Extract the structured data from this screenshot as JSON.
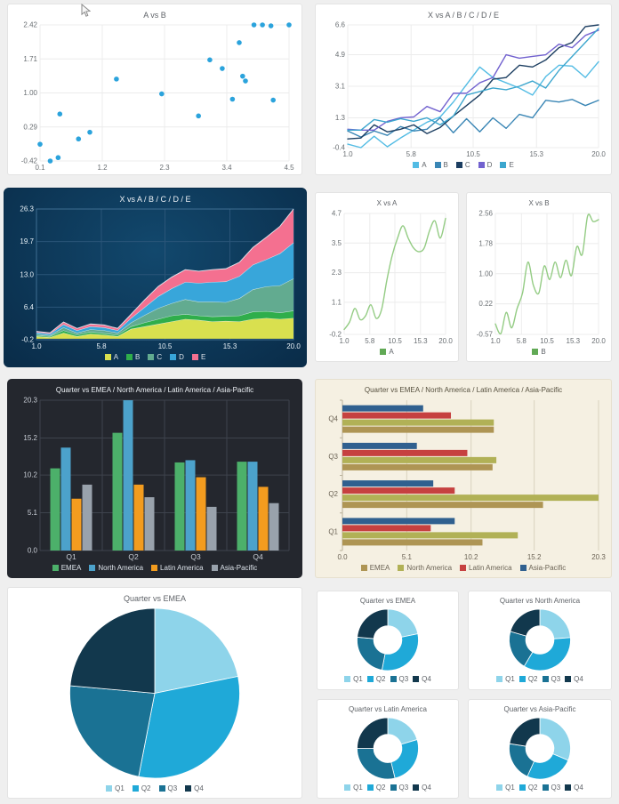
{
  "page": {
    "background": "#efefef"
  },
  "cursor": {
    "icon": "mouse-pointer"
  },
  "chart_data": [
    {
      "key": "scatter-a-vs-b",
      "type": "scatter",
      "title": "A vs B",
      "xticks": [
        "0.1",
        "1.2",
        "2.3",
        "3.4",
        "4.5"
      ],
      "yticks": [
        "-0.42",
        "0.29",
        "1.00",
        "1.71",
        "2.42"
      ],
      "point_color": "#2BA3DC",
      "grid": "#ececec",
      "text_color": "#6a6f73",
      "points": [
        [
          0.1,
          -0.07
        ],
        [
          0.28,
          -0.42
        ],
        [
          0.42,
          -0.35
        ],
        [
          0.45,
          0.56
        ],
        [
          0.78,
          0.04
        ],
        [
          0.98,
          0.18
        ],
        [
          1.45,
          1.29
        ],
        [
          2.25,
          0.98
        ],
        [
          2.9,
          0.52
        ],
        [
          3.1,
          1.69
        ],
        [
          3.32,
          1.51
        ],
        [
          3.5,
          0.87
        ],
        [
          3.62,
          2.05
        ],
        [
          3.68,
          1.35
        ],
        [
          3.73,
          1.25
        ],
        [
          3.88,
          2.42
        ],
        [
          4.03,
          2.42
        ],
        [
          4.18,
          2.4
        ],
        [
          4.22,
          0.85
        ],
        [
          4.5,
          2.42
        ]
      ]
    },
    {
      "key": "line-x-vs-abcde",
      "type": "line",
      "title": "X vs A / B / C / D / E",
      "xticks": [
        "1.0",
        "5.8",
        "10.5",
        "15.3",
        "20.0"
      ],
      "yticks": [
        "-0.4",
        "1.3",
        "3.1",
        "4.9",
        "6.6"
      ],
      "grid": "#ececec",
      "text_color": "#6a6f73",
      "series": [
        {
          "name": "A",
          "color": "#53BCE4",
          "values": [
            -0.2,
            -0.4,
            0.25,
            -0.35,
            0.15,
            0.6,
            1.05,
            1.35,
            2.2,
            3.2,
            4.2,
            3.6,
            3.3,
            3.0,
            2.6,
            3.65,
            4.3,
            4.25,
            3.6,
            4.5
          ]
        },
        {
          "name": "B",
          "color": "#3A86B5",
          "values": [
            0.55,
            0.2,
            0.55,
            0.3,
            0.8,
            0.55,
            0.65,
            1.3,
            0.45,
            1.25,
            0.5,
            1.3,
            0.7,
            1.5,
            1.3,
            2.3,
            2.2,
            2.35,
            2.0,
            2.3
          ]
        },
        {
          "name": "C",
          "color": "#1C3E61",
          "values": [
            0.1,
            0.15,
            0.9,
            0.5,
            0.65,
            0.9,
            0.4,
            0.75,
            1.4,
            2.0,
            2.6,
            3.5,
            3.6,
            4.3,
            4.2,
            4.6,
            5.3,
            5.6,
            6.5,
            6.6
          ]
        },
        {
          "name": "D",
          "color": "#7262CF",
          "values": [
            0.65,
            0.6,
            0.6,
            1.1,
            1.3,
            1.35,
            1.95,
            1.65,
            2.7,
            2.7,
            3.3,
            3.6,
            4.9,
            4.7,
            4.8,
            4.9,
            5.5,
            5.3,
            6.0,
            6.3
          ]
        },
        {
          "name": "E",
          "color": "#3CA6CE",
          "values": [
            0.6,
            0.6,
            1.2,
            1.05,
            1.25,
            1.1,
            1.3,
            0.9,
            1.4,
            2.6,
            2.8,
            3.0,
            2.9,
            3.1,
            3.4,
            3.0,
            4.0,
            4.8,
            5.6,
            6.4
          ]
        }
      ]
    },
    {
      "key": "area-x-vs-abcde",
      "type": "area",
      "title": "X vs A / B / C / D / E",
      "xticks": [
        "1.0",
        "5.8",
        "10.5",
        "15.3",
        "20.0"
      ],
      "yticks": [
        "-0.2",
        "6.4",
        "13.0",
        "19.7",
        "26.3"
      ],
      "grid": "#2a5578",
      "text_color": "#e8f1f7",
      "frame": "#3f6e92",
      "edge_stroke": "#e8f3f8",
      "series": [
        {
          "name": "A",
          "color": "#D9E04F",
          "values": [
            0.5,
            0.3,
            1.2,
            0.5,
            1.0,
            0.8,
            0.5,
            2.0,
            2.5,
            3.0,
            3.5,
            4.0,
            3.8,
            3.5,
            3.6,
            3.5,
            4.0,
            4.2,
            4.0,
            4.2
          ]
        },
        {
          "name": "B",
          "color": "#2FAE4B",
          "values": [
            0.2,
            0.2,
            0.5,
            0.3,
            0.4,
            0.3,
            0.3,
            0.5,
            0.8,
            1.0,
            1.2,
            1.0,
            0.9,
            1.0,
            1.0,
            1.2,
            1.5,
            1.4,
            1.3,
            1.5
          ]
        },
        {
          "name": "C",
          "color": "#62AB90",
          "values": [
            0.3,
            0.2,
            0.6,
            0.4,
            0.5,
            0.6,
            0.4,
            0.8,
            1.5,
            2.2,
            2.5,
            3.0,
            2.8,
            3.0,
            2.8,
            3.5,
            4.5,
            5.0,
            5.5,
            6.5
          ]
        },
        {
          "name": "D",
          "color": "#38A6DA",
          "values": [
            0.3,
            0.3,
            0.6,
            0.5,
            0.6,
            0.6,
            0.5,
            0.9,
            1.6,
            2.4,
            3.0,
            3.5,
            3.8,
            4.0,
            4.2,
            4.5,
            5.0,
            5.5,
            6.5,
            7.3
          ]
        },
        {
          "name": "E",
          "color": "#F47090",
          "values": [
            0.2,
            0.2,
            0.5,
            0.4,
            0.5,
            0.5,
            0.4,
            0.8,
            1.5,
            2.0,
            2.3,
            2.5,
            2.4,
            2.5,
            2.6,
            2.8,
            3.5,
            4.5,
            5.5,
            6.8
          ]
        }
      ]
    },
    {
      "key": "line-x-vs-a",
      "type": "line",
      "smooth": true,
      "compact": true,
      "title": "X vs A",
      "xticks": [
        "1.0",
        "5.8",
        "10.5",
        "15.3",
        "20.0"
      ],
      "yticks": [
        "-0.2",
        "1.1",
        "2.3",
        "3.5",
        "4.7"
      ],
      "grid": "#ececec",
      "text_color": "#6a6f73",
      "series": [
        {
          "name": "A",
          "color": "#94CC84",
          "swatch": "#61A955",
          "values": [
            0.0,
            0.3,
            0.85,
            0.4,
            0.55,
            1.0,
            0.45,
            0.8,
            2.0,
            3.0,
            3.7,
            4.2,
            3.7,
            3.3,
            3.15,
            3.3,
            4.0,
            4.4,
            3.7,
            4.5
          ]
        }
      ]
    },
    {
      "key": "line-x-vs-b",
      "type": "line",
      "smooth": true,
      "compact": true,
      "title": "X vs B",
      "xticks": [
        "1.0",
        "5.8",
        "10.5",
        "15.3",
        "20.0"
      ],
      "yticks": [
        "-0.57",
        "0.22",
        "1.00",
        "1.78",
        "2.56"
      ],
      "grid": "#ececec",
      "text_color": "#6a6f73",
      "series": [
        {
          "name": "B",
          "color": "#94CC84",
          "swatch": "#61A955",
          "values": [
            -0.3,
            -0.55,
            0.0,
            -0.4,
            0.1,
            0.5,
            1.3,
            0.7,
            0.5,
            1.2,
            0.85,
            1.3,
            0.9,
            1.35,
            0.95,
            1.7,
            1.5,
            2.5,
            2.35,
            2.4
          ]
        }
      ]
    },
    {
      "key": "bar-quarter-regions",
      "type": "bar",
      "title": "Quarter vs EMEA / North America / Latin America / Asia-Pacific",
      "categories": [
        "Q1",
        "Q2",
        "Q3",
        "Q4"
      ],
      "yticks": [
        "0.0",
        "5.1",
        "10.2",
        "15.2",
        "20.3"
      ],
      "grid": "#3e434d",
      "frame": "#484d58",
      "text_color": "#c9ced6",
      "series": [
        {
          "name": "EMEA",
          "color": "#4CB06A",
          "values": [
            11.1,
            15.9,
            11.9,
            12.0
          ]
        },
        {
          "name": "North America",
          "color": "#4CA2CB",
          "values": [
            13.9,
            20.3,
            12.2,
            12.0
          ]
        },
        {
          "name": "Latin America",
          "color": "#F39C1F",
          "values": [
            7.0,
            8.9,
            9.9,
            8.6
          ]
        },
        {
          "name": "Asia-Pacific",
          "color": "#99A2AC",
          "values": [
            8.9,
            7.2,
            5.9,
            6.4
          ]
        }
      ]
    },
    {
      "key": "hbar-quarter-regions",
      "type": "hbar",
      "title": "Quarter vs EMEA / North America / Latin America / Asia-Pacific",
      "categories": [
        "Q1",
        "Q2",
        "Q3",
        "Q4"
      ],
      "xticks": [
        "0.0",
        "5.1",
        "10.2",
        "15.2",
        "20.3"
      ],
      "grid": "#d9d2be",
      "frame": "#b9b19a",
      "text_color": "#6b6355",
      "series": [
        {
          "name": "EMEA",
          "color": "#AE9554",
          "values": [
            11.1,
            15.9,
            11.9,
            12.0
          ]
        },
        {
          "name": "North America",
          "color": "#B1B156",
          "values": [
            13.9,
            20.3,
            12.2,
            12.0
          ]
        },
        {
          "name": "Latin America",
          "color": "#C64140",
          "values": [
            7.0,
            8.9,
            9.9,
            8.6
          ]
        },
        {
          "name": "Asia-Pacific",
          "color": "#30608F",
          "values": [
            8.9,
            7.2,
            5.9,
            6.4
          ]
        }
      ]
    },
    {
      "key": "pie-quarter-emea",
      "type": "pie",
      "title": "Quarter vs EMEA",
      "labels": [
        "Q1",
        "Q2",
        "Q3",
        "Q4"
      ],
      "values": [
        11.1,
        15.9,
        11.9,
        12.0
      ],
      "colors": [
        "#8ED4EA",
        "#1FA9D8",
        "#1A7294",
        "#12384D"
      ],
      "text_color": "#6a6f73"
    },
    {
      "key": "donut-quarter-emea",
      "type": "donut",
      "title": "Quarter vs EMEA",
      "labels": [
        "Q1",
        "Q2",
        "Q3",
        "Q4"
      ],
      "values": [
        11.1,
        15.9,
        11.9,
        12.0
      ],
      "colors": [
        "#8ED4EA",
        "#1FA9D8",
        "#1A7294",
        "#12384D"
      ],
      "text_color": "#6a6f73"
    },
    {
      "key": "donut-quarter-north-america",
      "type": "donut",
      "title": "Quarter vs North America",
      "labels": [
        "Q1",
        "Q2",
        "Q3",
        "Q4"
      ],
      "values": [
        13.9,
        20.3,
        12.2,
        12.0
      ],
      "colors": [
        "#8ED4EA",
        "#1FA9D8",
        "#1A7294",
        "#12384D"
      ],
      "text_color": "#6a6f73"
    },
    {
      "key": "donut-quarter-latin-america",
      "type": "donut",
      "title": "Quarter vs Latin America",
      "labels": [
        "Q1",
        "Q2",
        "Q3",
        "Q4"
      ],
      "values": [
        7.0,
        8.9,
        9.9,
        8.6
      ],
      "colors": [
        "#8ED4EA",
        "#1FA9D8",
        "#1A7294",
        "#12384D"
      ],
      "text_color": "#6a6f73"
    },
    {
      "key": "donut-quarter-asia-pacific",
      "type": "donut",
      "title": "Quarter vs Asia-Pacific",
      "labels": [
        "Q1",
        "Q2",
        "Q3",
        "Q4"
      ],
      "values": [
        8.9,
        7.2,
        5.9,
        6.4
      ],
      "colors": [
        "#8ED4EA",
        "#1FA9D8",
        "#1A7294",
        "#12384D"
      ],
      "text_color": "#6a6f73"
    }
  ]
}
